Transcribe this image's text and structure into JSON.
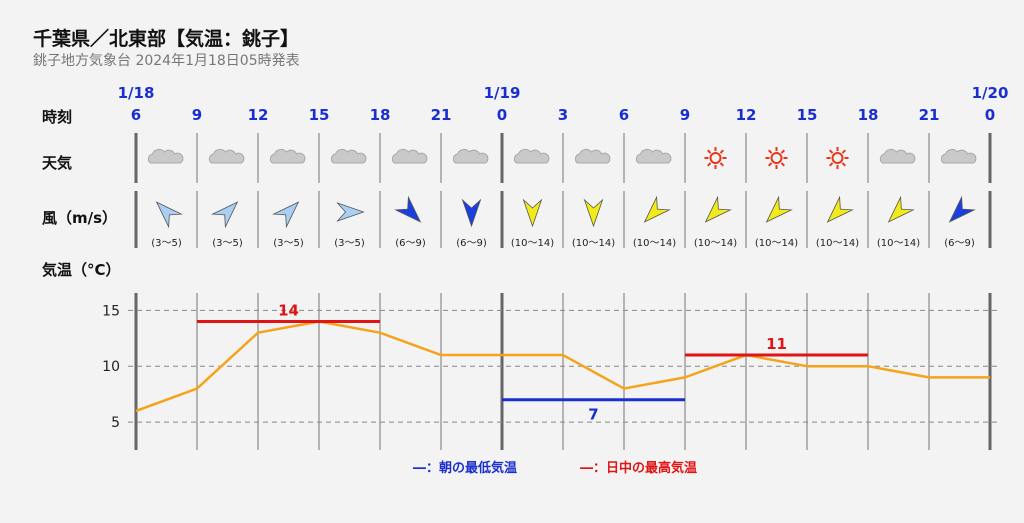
{
  "title": "千葉県／北東部【気温：銚子】",
  "subtitle": "銚子地方気象台 2024年1月18日05時発表",
  "row_labels": {
    "time": "時刻",
    "weather": "天気",
    "wind": "風（m/s）",
    "temp": "気温（°C）"
  },
  "dates": [
    {
      "label": "1/18",
      "index": 0
    },
    {
      "label": "1/19",
      "index": 6
    },
    {
      "label": "1/20",
      "index": 14
    }
  ],
  "hours": [
    "6",
    "9",
    "12",
    "15",
    "18",
    "21",
    "0",
    "3",
    "6",
    "9",
    "12",
    "15",
    "18",
    "21",
    "0"
  ],
  "weather": [
    "cloudy",
    "cloudy",
    "cloudy",
    "cloudy",
    "cloudy",
    "cloudy",
    "cloudy",
    "cloudy",
    "cloudy",
    "sunny",
    "sunny",
    "sunny",
    "cloudy",
    "cloudy"
  ],
  "wind": [
    {
      "range": "(3〜5)",
      "dir_deg": 315,
      "color": "#a9d0f2"
    },
    {
      "range": "(3〜5)",
      "dir_deg": 45,
      "color": "#a9d0f2"
    },
    {
      "range": "(3〜5)",
      "dir_deg": 45,
      "color": "#a9d0f2"
    },
    {
      "range": "(3〜5)",
      "dir_deg": 90,
      "color": "#a9d0f2"
    },
    {
      "range": "(6〜9)",
      "dir_deg": 135,
      "color": "#1a3fe0"
    },
    {
      "range": "(6〜9)",
      "dir_deg": 180,
      "color": "#1a3fe0"
    },
    {
      "range": "(10〜14)",
      "dir_deg": 180,
      "color": "#f2ea1a"
    },
    {
      "range": "(10〜14)",
      "dir_deg": 180,
      "color": "#f2ea1a"
    },
    {
      "range": "(10〜14)",
      "dir_deg": 225,
      "color": "#f2ea1a"
    },
    {
      "range": "(10〜14)",
      "dir_deg": 225,
      "color": "#f2ea1a"
    },
    {
      "range": "(10〜14)",
      "dir_deg": 225,
      "color": "#f2ea1a"
    },
    {
      "range": "(10〜14)",
      "dir_deg": 225,
      "color": "#f2ea1a"
    },
    {
      "range": "(10〜14)",
      "dir_deg": 225,
      "color": "#f2ea1a"
    },
    {
      "range": "(6〜9)",
      "dir_deg": 225,
      "color": "#1a3fe0"
    }
  ],
  "legend": {
    "min": "―：朝の最低気温",
    "max": "―：日中の最高気温"
  },
  "chart_data": {
    "type": "line",
    "x": [
      "1/18 6",
      "1/18 9",
      "1/18 12",
      "1/18 15",
      "1/18 18",
      "1/18 21",
      "1/19 0",
      "1/19 3",
      "1/19 6",
      "1/19 9",
      "1/19 12",
      "1/19 15",
      "1/19 18",
      "1/19 21",
      "1/20 0"
    ],
    "series": [
      {
        "values": [
          6,
          8,
          13,
          14,
          13,
          11,
          11,
          11,
          8,
          9,
          11,
          10,
          10,
          9,
          9
        ],
        "color": "#f5a31a"
      }
    ],
    "ylim": [
      2.5,
      17
    ],
    "yticks": [
      5,
      10,
      15
    ],
    "daily_max": [
      {
        "value": 14,
        "label": "14",
        "from": 1,
        "to": 4,
        "color": "#e01414"
      },
      {
        "value": 11,
        "label": "11",
        "from": 9,
        "to": 12,
        "color": "#e01414"
      }
    ],
    "daily_min": [
      {
        "value": 7,
        "label": "7",
        "from": 6,
        "to": 9,
        "color": "#1a2fd0"
      }
    ],
    "grid": true
  }
}
